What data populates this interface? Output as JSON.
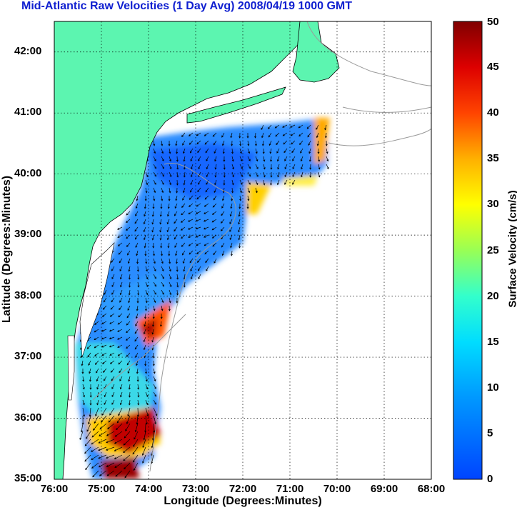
{
  "title": "Mid-Atlantic Raw Velocities (1 Day Avg) 2008/04/19 1000 GMT",
  "map": {
    "xlabel": "Longitude (Degrees:Minutes)",
    "ylabel": "Latitude (Degrees:Minutes)",
    "lon_range": [
      -76,
      -68
    ],
    "lat_range": [
      35,
      42.5
    ],
    "x_ticks": [
      "76:00",
      "75:00",
      "74:00",
      "73:00",
      "72:00",
      "71:00",
      "70:00",
      "69:00",
      "68:00"
    ],
    "y_ticks": [
      "42:00",
      "41:00",
      "40:00",
      "39:00",
      "38:00",
      "37:00",
      "36:00",
      "35:00"
    ],
    "grid": "dotted",
    "land_color": "#5cf5b0",
    "coast_color": "#9a9a9a"
  },
  "colorbar": {
    "label": "Surface Velocity (cm/s)",
    "range": [
      0,
      50
    ],
    "ticks": [
      "50",
      "45",
      "40",
      "35",
      "30",
      "25",
      "20",
      "15",
      "10",
      "5",
      "0"
    ]
  },
  "legend_position": "right"
}
